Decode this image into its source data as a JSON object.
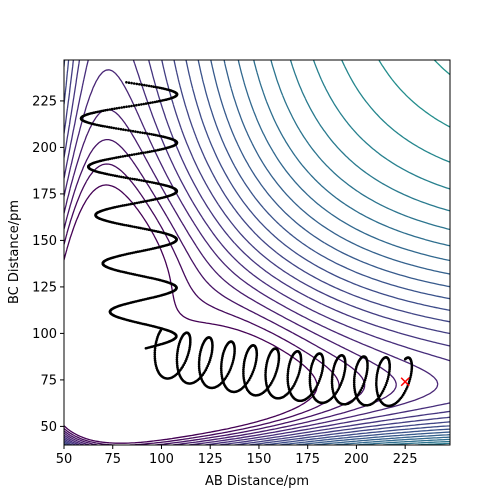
{
  "chart_data": {
    "type": "contour",
    "title": "",
    "xlabel": "AB Distance/pm",
    "ylabel": "BC Distance/pm",
    "xlim": [
      50,
      248
    ],
    "ylim": [
      40,
      247
    ],
    "xticks": [
      50,
      75,
      100,
      125,
      150,
      175,
      200,
      225
    ],
    "yticks": [
      50,
      75,
      100,
      125,
      150,
      175,
      200,
      225
    ],
    "colormap": "viridis",
    "contour_levels": 40,
    "trajectory": {
      "color": "#000000",
      "marker": "dots",
      "start": [
        225,
        74
      ],
      "end": [
        75,
        235
      ]
    },
    "start_marker": {
      "symbol": "x",
      "color": "#ff0000",
      "x": 225,
      "y": 74
    }
  }
}
